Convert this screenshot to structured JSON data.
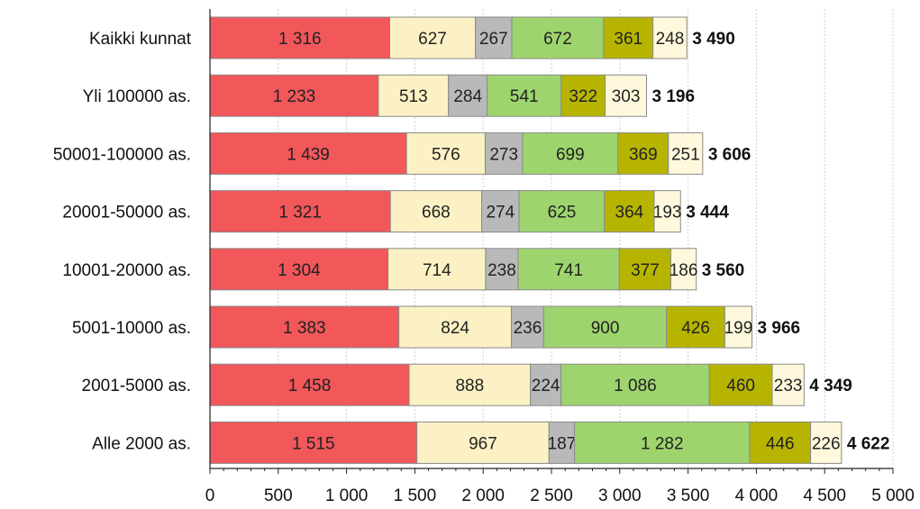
{
  "chart_data": {
    "type": "bar",
    "orientation": "horizontal",
    "stacked": true,
    "categories": [
      "Kaikki kunnat",
      "Yli 100000 as.",
      "50001-100000 as.",
      "20001-50000 as.",
      "10001-20000 as.",
      "5001-10000 as.",
      "2001-5000 as.",
      "Alle 2000 as."
    ],
    "series": [
      {
        "color": "#f2575a",
        "values": [
          1316,
          1233,
          1439,
          1321,
          1304,
          1383,
          1458,
          1515
        ],
        "labels": [
          "1 316",
          "1 233",
          "1 439",
          "1 321",
          "1 304",
          "1 383",
          "1 458",
          "1 515"
        ]
      },
      {
        "color": "#fbf1c4",
        "values": [
          627,
          513,
          576,
          668,
          714,
          824,
          888,
          967
        ],
        "labels": [
          "627",
          "513",
          "576",
          "668",
          "714",
          "824",
          "888",
          "967"
        ]
      },
      {
        "color": "#b9b9b9",
        "values": [
          267,
          284,
          273,
          274,
          238,
          236,
          224,
          187
        ],
        "labels": [
          "267",
          "284",
          "273",
          "274",
          "238",
          "236",
          "224",
          "187"
        ]
      },
      {
        "color": "#9ed46e",
        "values": [
          672,
          541,
          699,
          625,
          741,
          900,
          1086,
          1282
        ],
        "labels": [
          "672",
          "541",
          "699",
          "625",
          "741",
          "900",
          "1 086",
          "1 282"
        ]
      },
      {
        "color": "#b7b400",
        "values": [
          361,
          322,
          369,
          364,
          377,
          426,
          460,
          446
        ],
        "labels": [
          "361",
          "322",
          "369",
          "364",
          "377",
          "426",
          "460",
          "446"
        ]
      },
      {
        "color": "#fff8dc",
        "values": [
          248,
          303,
          251,
          193,
          186,
          199,
          233,
          226
        ],
        "labels": [
          "248",
          "303",
          "251",
          "193",
          "186",
          "199",
          "233",
          "226"
        ]
      }
    ],
    "totals": [
      3490,
      3196,
      3606,
      3444,
      3560,
      3966,
      4349,
      4622
    ],
    "total_labels": [
      "3 490",
      "3 196",
      "3 606",
      "3 444",
      "3 560",
      "3 966",
      "4 349",
      "4 622"
    ],
    "x_ticks": [
      0,
      500,
      1000,
      1500,
      2000,
      2500,
      3000,
      3500,
      4000,
      4500,
      5000
    ],
    "x_tick_labels": [
      "0",
      "500",
      "1 000",
      "1 500",
      "2 000",
      "2 500",
      "3 000",
      "3 500",
      "4 000",
      "4 500",
      "5 000"
    ],
    "xlim": [
      0,
      5000
    ],
    "grid": true,
    "title": "",
    "xlabel": "",
    "ylabel": ""
  }
}
